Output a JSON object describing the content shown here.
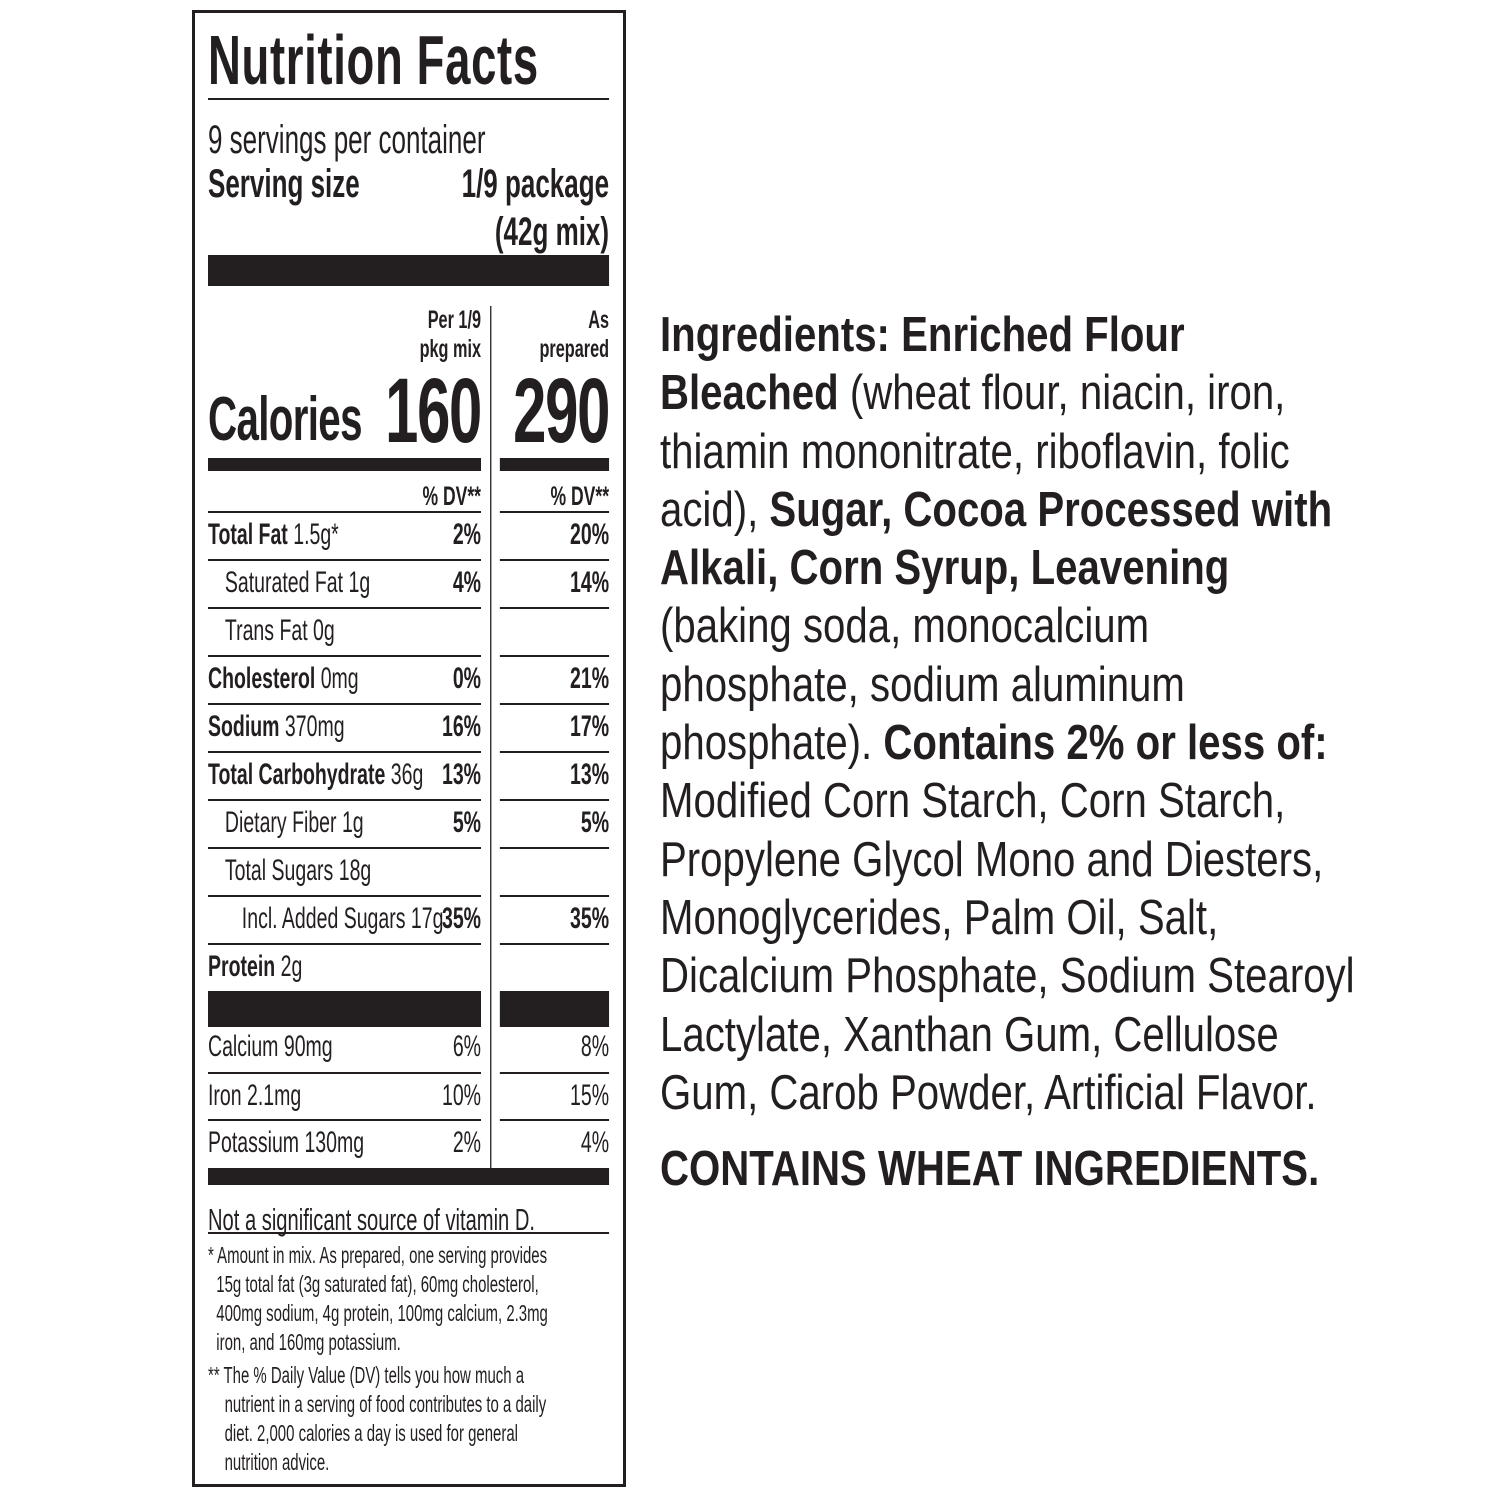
{
  "label": {
    "title": "Nutrition Facts",
    "servings": "9 servings per container",
    "serving_size_label": "Serving size",
    "serving_size_value": "1/9 package",
    "serving_size_weight": "(42g mix)",
    "col_mix_line1": "Per 1/9",
    "col_mix_line2": "pkg mix",
    "col_prep_line1": "As",
    "col_prep_line2": "prepared",
    "calories_label": "Calories",
    "calories_mix": "160",
    "calories_prepared": "290",
    "dv_header_mix": "% DV**",
    "dv_header_prep": "% DV**",
    "nutrients": [
      {
        "name": "Total Fat",
        "amount": "1.5g*",
        "dv_mix": "2%",
        "dv_prep": "20%",
        "bold": true,
        "indent": 0
      },
      {
        "name": "Saturated Fat",
        "amount": "1g",
        "dv_mix": "4%",
        "dv_prep": "14%",
        "bold": false,
        "indent": 1
      },
      {
        "name": "Trans Fat",
        "amount": "0g",
        "dv_mix": "",
        "dv_prep": "",
        "bold": false,
        "indent": 1
      },
      {
        "name": "Cholesterol",
        "amount": "0mg",
        "dv_mix": "0%",
        "dv_prep": "21%",
        "bold": true,
        "indent": 0
      },
      {
        "name": "Sodium",
        "amount": "370mg",
        "dv_mix": "16%",
        "dv_prep": "17%",
        "bold": true,
        "indent": 0
      },
      {
        "name": "Total Carbohydrate",
        "amount": "36g",
        "dv_mix": "13%",
        "dv_prep": "13%",
        "bold": true,
        "indent": 0
      },
      {
        "name": "Dietary Fiber",
        "amount": "1g",
        "dv_mix": "5%",
        "dv_prep": "5%",
        "bold": false,
        "indent": 1
      },
      {
        "name": "Total Sugars",
        "amount": "18g",
        "dv_mix": "",
        "dv_prep": "",
        "bold": false,
        "indent": 1
      },
      {
        "name": "Incl. Added Sugars",
        "amount": "17g",
        "dv_mix": "35%",
        "dv_prep": "35%",
        "bold": false,
        "indent": 2
      },
      {
        "name": "Protein",
        "amount": "2g",
        "dv_mix": "",
        "dv_prep": "",
        "bold": true,
        "indent": 0
      }
    ],
    "minerals": [
      {
        "name": "Calcium",
        "amount": "90mg",
        "dv_mix": "6%",
        "dv_prep": "8%"
      },
      {
        "name": "Iron",
        "amount": "2.1mg",
        "dv_mix": "10%",
        "dv_prep": "15%"
      },
      {
        "name": "Potassium",
        "amount": "130mg",
        "dv_mix": "2%",
        "dv_prep": "4%"
      }
    ],
    "not_significant": "Not a significant source of vitamin D.",
    "footnotes": [
      "* Amount in mix. As prepared, one serving provides",
      "  15g total fat (3g saturated fat), 60mg cholesterol,",
      "  400mg sodium, 4g protein, 100mg calcium, 2.3mg",
      "  iron, and 160mg potassium.",
      "** The % Daily Value (DV) tells you how much a",
      "    nutrient in a serving of food contributes to a daily",
      "    diet. 2,000 calories a day is used for general",
      "    nutrition advice."
    ]
  },
  "ingredients": {
    "lines": [
      [
        {
          "b": true,
          "t": "Ingredients: Enriched Flour"
        }
      ],
      [
        {
          "b": true,
          "t": "Bleached "
        },
        {
          "b": false,
          "t": "(wheat flour, niacin, iron,"
        }
      ],
      [
        {
          "b": false,
          "t": "thiamin mononitrate, riboflavin, folic"
        }
      ],
      [
        {
          "b": false,
          "t": "acid), "
        },
        {
          "b": true,
          "t": "Sugar, Cocoa Processed with"
        }
      ],
      [
        {
          "b": true,
          "t": "Alkali, Corn Syrup, Leavening"
        }
      ],
      [
        {
          "b": false,
          "t": "(baking soda, monocalcium"
        }
      ],
      [
        {
          "b": false,
          "t": "phosphate, sodium aluminum"
        }
      ],
      [
        {
          "b": false,
          "t": "phosphate). "
        },
        {
          "b": true,
          "t": "Contains 2% or less of:"
        }
      ],
      [
        {
          "b": false,
          "t": "Modified Corn Starch, Corn Starch,"
        }
      ],
      [
        {
          "b": false,
          "t": "Propylene Glycol Mono and Diesters,"
        }
      ],
      [
        {
          "b": false,
          "t": "Monoglycerides, Palm Oil, Salt,"
        }
      ],
      [
        {
          "b": false,
          "t": "Dicalcium Phosphate, Sodium Stearoyl"
        }
      ],
      [
        {
          "b": false,
          "t": "Lactylate, Xanthan Gum, Cellulose"
        }
      ],
      [
        {
          "b": false,
          "t": "Gum, Carob Powder, Artificial Flavor."
        }
      ]
    ],
    "allergen": "CONTAINS WHEAT INGREDIENTS."
  }
}
